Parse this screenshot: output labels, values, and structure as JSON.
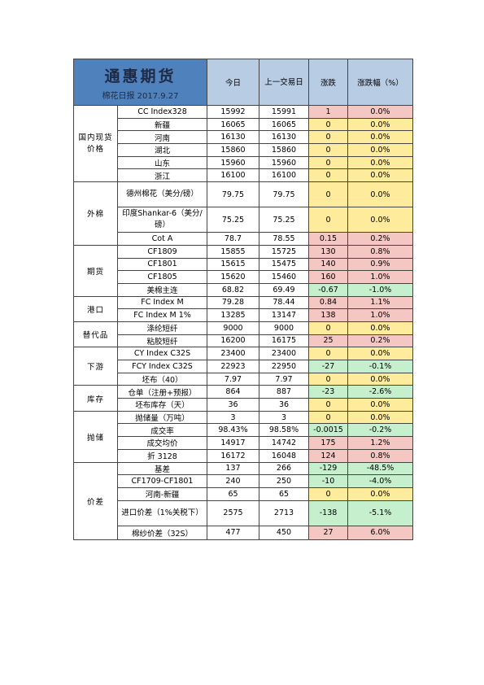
{
  "header": {
    "title": "通惠期货",
    "subtitle": "棉花日报 2017.9.27",
    "col_today": "今日",
    "col_prev": "上一交易日",
    "col_change": "涨跌",
    "col_pct": "涨跌幅（%）"
  },
  "colors": {
    "header_blue": "#4f81bd",
    "header_light": "#b8cce4",
    "positive": "#f4c7c3",
    "zero": "#ffeb9c",
    "negative": "#c6efce"
  },
  "groups": [
    {
      "category": "国内现货价格",
      "rows": [
        {
          "item": "CC Index328",
          "today": "15992",
          "prev": "15991",
          "change": "1",
          "pct": "0.0%",
          "status": "pos"
        },
        {
          "item": "新疆",
          "today": "16065",
          "prev": "16065",
          "change": "0",
          "pct": "0.0%",
          "status": "zero"
        },
        {
          "item": "河南",
          "today": "16130",
          "prev": "16130",
          "change": "0",
          "pct": "0.0%",
          "status": "zero"
        },
        {
          "item": "湖北",
          "today": "15860",
          "prev": "15860",
          "change": "0",
          "pct": "0.0%",
          "status": "zero"
        },
        {
          "item": "山东",
          "today": "15960",
          "prev": "15960",
          "change": "0",
          "pct": "0.0%",
          "status": "zero"
        },
        {
          "item": "浙江",
          "today": "16100",
          "prev": "16100",
          "change": "0",
          "pct": "0.0%",
          "status": "zero"
        }
      ]
    },
    {
      "category": "外棉",
      "rows": [
        {
          "item": "德州棉花（美分/磅）",
          "today": "79.75",
          "prev": "79.75",
          "change": "0",
          "pct": "0.0%",
          "status": "zero",
          "tall": true
        },
        {
          "item": "印度Shankar-6（美分/磅）",
          "today": "75.25",
          "prev": "75.25",
          "change": "0",
          "pct": "0.0%",
          "status": "zero",
          "tall": true
        },
        {
          "item": "Cot A",
          "today": "78.7",
          "prev": "78.55",
          "change": "0.15",
          "pct": "0.2%",
          "status": "pos"
        }
      ]
    },
    {
      "category": "期货",
      "rows": [
        {
          "item": "CF1809",
          "today": "15855",
          "prev": "15725",
          "change": "130",
          "pct": "0.8%",
          "status": "pos"
        },
        {
          "item": "CF1801",
          "today": "15615",
          "prev": "15475",
          "change": "140",
          "pct": "0.9%",
          "status": "pos"
        },
        {
          "item": "CF1805",
          "today": "15620",
          "prev": "15460",
          "change": "160",
          "pct": "1.0%",
          "status": "pos"
        },
        {
          "item": "美棉主连",
          "today": "68.82",
          "prev": "69.49",
          "change": "-0.67",
          "pct": "-1.0%",
          "status": "neg"
        }
      ]
    },
    {
      "category": "港口",
      "rows": [
        {
          "item": "FC Index M",
          "today": "79.28",
          "prev": "78.44",
          "change": "0.84",
          "pct": "1.1%",
          "status": "pos"
        },
        {
          "item": "FC Index M 1%",
          "today": "13285",
          "prev": "13147",
          "change": "138",
          "pct": "1.0%",
          "status": "pos"
        }
      ]
    },
    {
      "category": "替代品",
      "rows": [
        {
          "item": "涤纶短纤",
          "today": "9000",
          "prev": "9000",
          "change": "0",
          "pct": "0.0%",
          "status": "zero"
        },
        {
          "item": "粘胶短纤",
          "today": "16200",
          "prev": "16175",
          "change": "25",
          "pct": "0.2%",
          "status": "pos"
        }
      ]
    },
    {
      "category": "下游",
      "rows": [
        {
          "item": "CY Index C32S",
          "today": "23400",
          "prev": "23400",
          "change": "0",
          "pct": "0.0%",
          "status": "zero"
        },
        {
          "item": "FCY Index C32S",
          "today": "22923",
          "prev": "22950",
          "change": "-27",
          "pct": "-0.1%",
          "status": "neg"
        },
        {
          "item": "坯布（40）",
          "today": "7.97",
          "prev": "7.97",
          "change": "0",
          "pct": "0.0%",
          "status": "zero"
        }
      ]
    },
    {
      "category": "库存",
      "rows": [
        {
          "item": "仓单（注册+预报）",
          "today": "864",
          "prev": "887",
          "change": "-23",
          "pct": "-2.6%",
          "status": "neg"
        },
        {
          "item": "坯布库存（天）",
          "today": "36",
          "prev": "36",
          "change": "0",
          "pct": "0.0%",
          "status": "zero"
        }
      ]
    },
    {
      "category": "抛储",
      "rows": [
        {
          "item": "抛储量（万吨）",
          "today": "3",
          "prev": "3",
          "change": "0",
          "pct": "0.0%",
          "status": "zero"
        },
        {
          "item": "成交率",
          "today": "98.43%",
          "prev": "98.58%",
          "change": "-0.0015",
          "pct": "-0.2%",
          "status": "neg"
        },
        {
          "item": "成交均价",
          "today": "14917",
          "prev": "14742",
          "change": "175",
          "pct": "1.2%",
          "status": "pos"
        },
        {
          "item": "折 3128",
          "today": "16172",
          "prev": "16048",
          "change": "124",
          "pct": "0.8%",
          "status": "pos"
        }
      ]
    },
    {
      "category": "价差",
      "rows": [
        {
          "item": "基差",
          "today": "137",
          "prev": "266",
          "change": "-129",
          "pct": "-48.5%",
          "status": "neg"
        },
        {
          "item": "CF1709-CF1801",
          "today": "240",
          "prev": "250",
          "change": "-10",
          "pct": "-4.0%",
          "status": "neg"
        },
        {
          "item": "河南-新疆",
          "today": "65",
          "prev": "65",
          "change": "0",
          "pct": "0.0%",
          "status": "zero"
        },
        {
          "item": "进口价差（1%关税下）",
          "today": "2575",
          "prev": "2713",
          "change": "-138",
          "pct": "-5.1%",
          "status": "neg",
          "tall": true
        },
        {
          "item": "棉纱价差（32S）",
          "today": "477",
          "prev": "450",
          "change": "27",
          "pct": "6.0%",
          "status": "pos",
          "last": true
        }
      ]
    }
  ]
}
